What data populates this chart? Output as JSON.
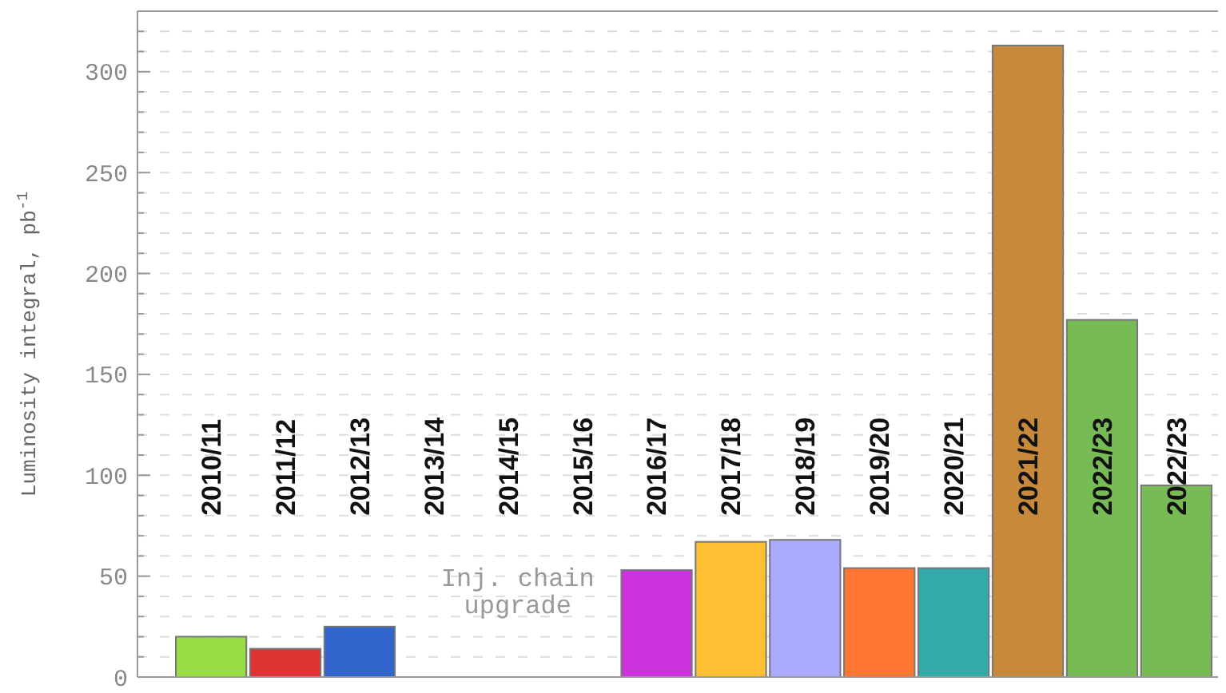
{
  "chart_data": {
    "type": "bar",
    "ylabel": "Luminosity integral, pb$^{-1}$",
    "categories": [
      "2010/11",
      "2011/12",
      "2012/13",
      "2013/14",
      "2014/15",
      "2015/16",
      "2016/17",
      "2017/18",
      "2018/19",
      "2019/20",
      "2020/21",
      "2021/22",
      "2022/23",
      "2022/23"
    ],
    "values": [
      20,
      14,
      25,
      null,
      null,
      null,
      53,
      67,
      68,
      54,
      54,
      313,
      177,
      95
    ],
    "colors": [
      "#99dd44",
      "#dd3333",
      "#3366cc",
      null,
      null,
      null,
      "#cc33dd",
      "#ffc033",
      "#aaaaff",
      "#ff7733",
      "#33aaaa",
      "#c88a3a",
      "#77bb55",
      "#77bb55"
    ],
    "ylim": [
      0,
      330
    ],
    "yticks": [
      0,
      {
        "value": 10,
        "label": null
      },
      {
        "value": 20,
        "label": null
      },
      {
        "value": 30,
        "label": null
      },
      {
        "value": 40,
        "label": null
      },
      50,
      {
        "value": 60,
        "label": null
      },
      {
        "value": 70,
        "label": null
      },
      {
        "value": 80,
        "label": null
      },
      {
        "value": 90,
        "label": null
      },
      100,
      {
        "value": 110,
        "label": null
      },
      {
        "value": 120,
        "label": null
      },
      {
        "value": 130,
        "label": null
      },
      {
        "value": 140,
        "label": null
      },
      150,
      {
        "value": 160,
        "label": null
      },
      {
        "value": 170,
        "label": null
      },
      {
        "value": 180,
        "label": null
      },
      {
        "value": 190,
        "label": null
      },
      200,
      {
        "value": 210,
        "label": null
      },
      {
        "value": 220,
        "label": null
      },
      {
        "value": 230,
        "label": null
      },
      {
        "value": 240,
        "label": null
      },
      250,
      {
        "value": 260,
        "label": null
      },
      {
        "value": 270,
        "label": null
      },
      {
        "value": 280,
        "label": null
      },
      {
        "value": 290,
        "label": null
      },
      300,
      {
        "value": 310,
        "label": null
      },
      {
        "value": 320,
        "label": null
      }
    ],
    "grid": true,
    "annotations": [
      "Inj. chain upgrade"
    ]
  }
}
